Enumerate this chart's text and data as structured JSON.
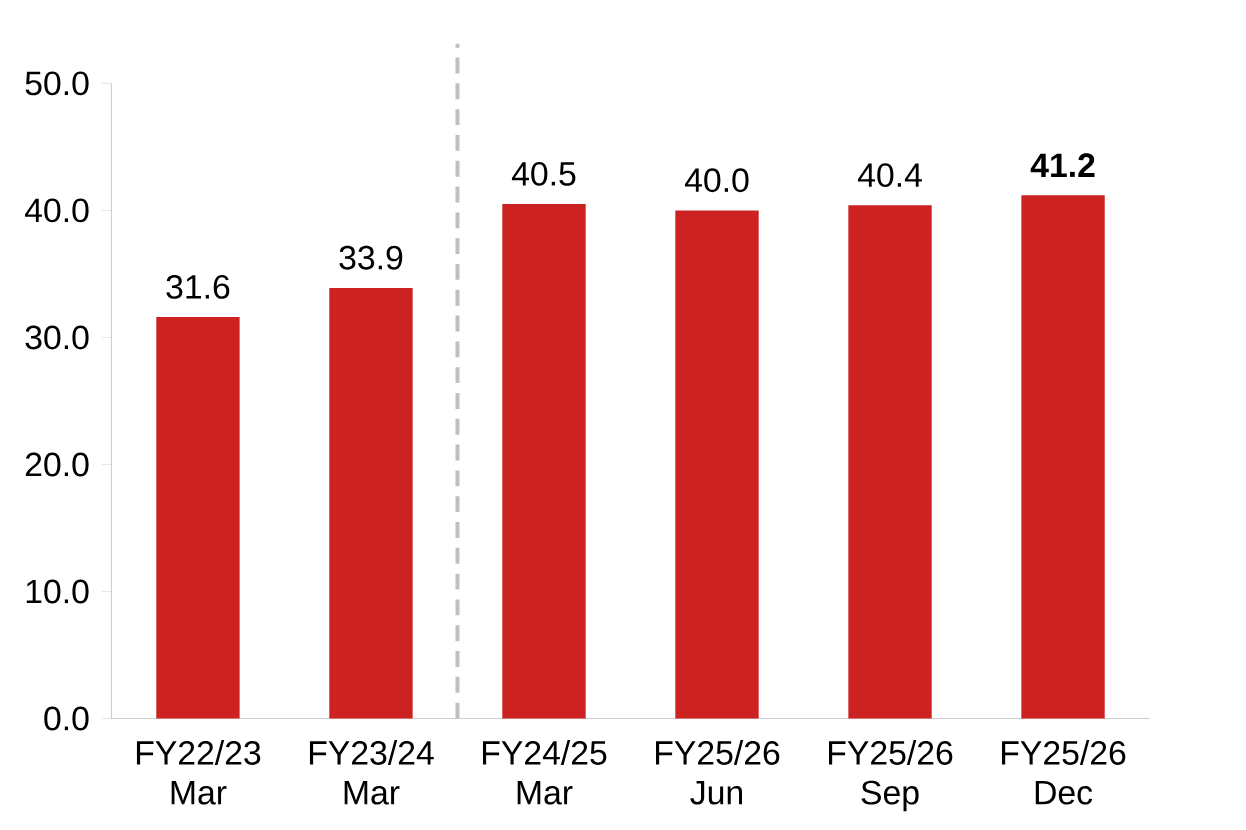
{
  "chart_data": {
    "type": "bar",
    "categories": [
      "FY22/23 Mar",
      "FY23/24 Mar",
      "FY24/25 Mar",
      "FY25/26 Jun",
      "FY25/26 Sep",
      "FY25/26 Dec"
    ],
    "values": [
      31.6,
      33.9,
      40.5,
      40.0,
      40.4,
      41.2
    ],
    "color": "#cc2222",
    "value_labels": [
      "31.6",
      "33.9",
      "40.5",
      "40.0",
      "40.4",
      "**41.2**"
    ],
    "ylim": [
      0,
      50
    ],
    "yticks": [
      {
        "value": 0,
        "label": "0.0"
      },
      {
        "value": 10,
        "label": "10.0"
      },
      {
        "value": 20,
        "label": "20.0"
      },
      {
        "value": 30,
        "label": "30.0"
      },
      {
        "value": 40,
        "label": "40.0"
      },
      {
        "value": 50,
        "label": "50.0"
      }
    ],
    "grid": false
  }
}
